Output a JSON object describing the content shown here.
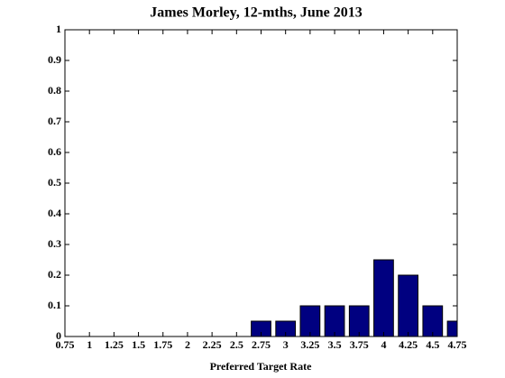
{
  "chart_data": {
    "type": "bar",
    "title": "James Morley, 12-mths, June 2013",
    "x_label": "Preferred Target Rate",
    "categories": [
      "0.75",
      "1",
      "1.25",
      "1.5",
      "1.75",
      "2",
      "2.25",
      "2.5",
      "2.75",
      "3",
      "3.25",
      "3.5",
      "3.75",
      "4",
      "4.25",
      "4.5",
      "4.75"
    ],
    "values": [
      0,
      0,
      0,
      0,
      0,
      0,
      0,
      0,
      0.05,
      0.05,
      0.1,
      0.1,
      0.1,
      0.25,
      0.2,
      0.1,
      0.05
    ],
    "color": "#000080",
    "ylim": [
      0,
      1
    ],
    "yticks": [
      0,
      0.1,
      0.2,
      0.3,
      0.4,
      0.5,
      0.6,
      0.7,
      0.8,
      0.9,
      1
    ],
    "grid": false
  }
}
